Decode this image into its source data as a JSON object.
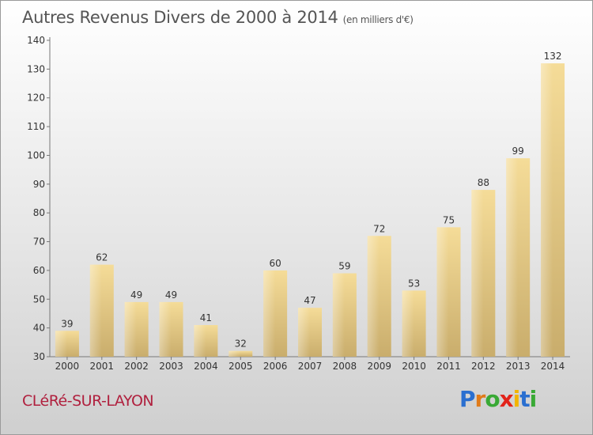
{
  "chart_data": {
    "type": "bar",
    "title": "Autres Revenus Divers de 2000 à 2014",
    "subtitle": "(en milliers d'€)",
    "categories": [
      "2000",
      "2001",
      "2002",
      "2003",
      "2004",
      "2005",
      "2006",
      "2007",
      "2008",
      "2009",
      "2010",
      "2011",
      "2012",
      "2013",
      "2014"
    ],
    "values": [
      39,
      62,
      49,
      49,
      41,
      32,
      60,
      47,
      59,
      72,
      53,
      75,
      88,
      99,
      132
    ],
    "ylim": [
      30,
      140
    ],
    "yticks": [
      30,
      40,
      50,
      60,
      70,
      80,
      90,
      100,
      110,
      120,
      130,
      140
    ],
    "xlabel": "",
    "ylabel": "",
    "bar_color": "#e8cf8c",
    "grid": false
  },
  "footer": {
    "place": "CLéRé-SUR-LAYON",
    "logo_letters": [
      "P",
      "r",
      "o",
      "x",
      "i",
      "t",
      "i"
    ],
    "logo_colors": [
      "#2a6fd0",
      "#e07b1a",
      "#39a935",
      "#e2231a",
      "#f2b400",
      "#2a6fd0",
      "#39a935"
    ]
  }
}
